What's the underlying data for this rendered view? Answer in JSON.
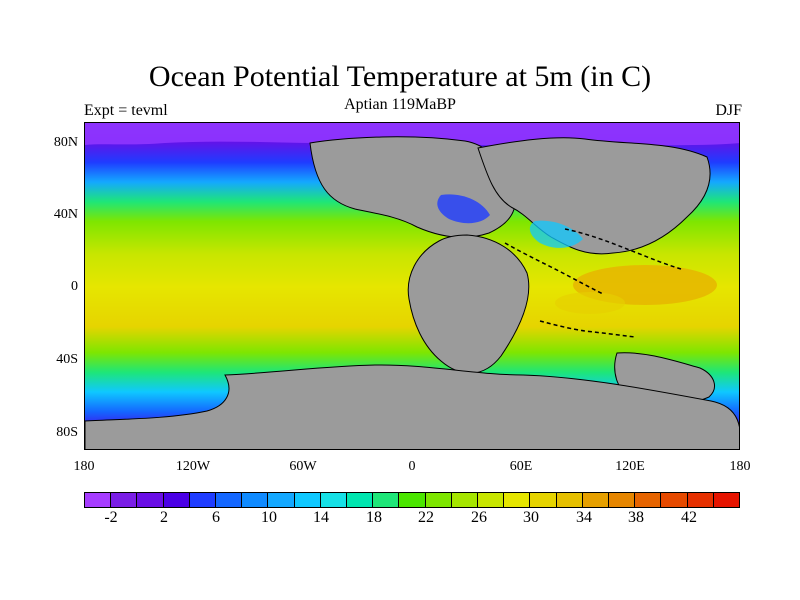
{
  "header": {
    "title": "Ocean Potential Temperature at 5m (in C)",
    "subtitle_left": "Expt = tevml",
    "subtitle_center": "Aptian   119MaBP",
    "subtitle_right": "DJF"
  },
  "axes": {
    "x_ticks": [
      "180",
      "120W",
      "60W",
      "0",
      "60E",
      "120E",
      "180"
    ],
    "y_ticks": [
      "80N",
      "40N",
      "0",
      "40S",
      "80S"
    ]
  },
  "legend": {
    "tick_labels": [
      "-2",
      "2",
      "6",
      "10",
      "14",
      "18",
      "22",
      "26",
      "30",
      "34",
      "38",
      "42"
    ],
    "colors": [
      "#a63cff",
      "#7a1ee6",
      "#6a0ee6",
      "#4a00e6",
      "#1f3cff",
      "#1467ff",
      "#0f8aff",
      "#14a8ff",
      "#0fc8ff",
      "#16e0e6",
      "#00e6b0",
      "#1ee678",
      "#4be600",
      "#7ee600",
      "#a6e600",
      "#c8e600",
      "#e6e600",
      "#e6d400",
      "#e6c000",
      "#e6a000",
      "#e68600",
      "#e66400",
      "#e64a00",
      "#e63000",
      "#e61400"
    ]
  },
  "chart_data": {
    "type": "heatmap",
    "title": "Ocean Potential Temperature at 5m (in C)",
    "xlabel": "",
    "ylabel": "",
    "xlim": [
      -180,
      180
    ],
    "ylim": [
      -90,
      90
    ],
    "colorbar": {
      "min": -4,
      "max": 44,
      "ticks": [
        -2,
        2,
        6,
        10,
        14,
        18,
        22,
        26,
        30,
        34,
        38,
        42
      ]
    },
    "approximate_zonal_mean_sst_by_lat": [
      {
        "lat": 80,
        "value": 0
      },
      {
        "lat": 60,
        "value": 14
      },
      {
        "lat": 40,
        "value": 22
      },
      {
        "lat": 20,
        "value": 27
      },
      {
        "lat": 0,
        "value": 29
      },
      {
        "lat": -20,
        "value": 28
      },
      {
        "lat": -40,
        "value": 20
      },
      {
        "lat": -60,
        "value": 12
      },
      {
        "lat": -80,
        "value": 2
      }
    ]
  }
}
